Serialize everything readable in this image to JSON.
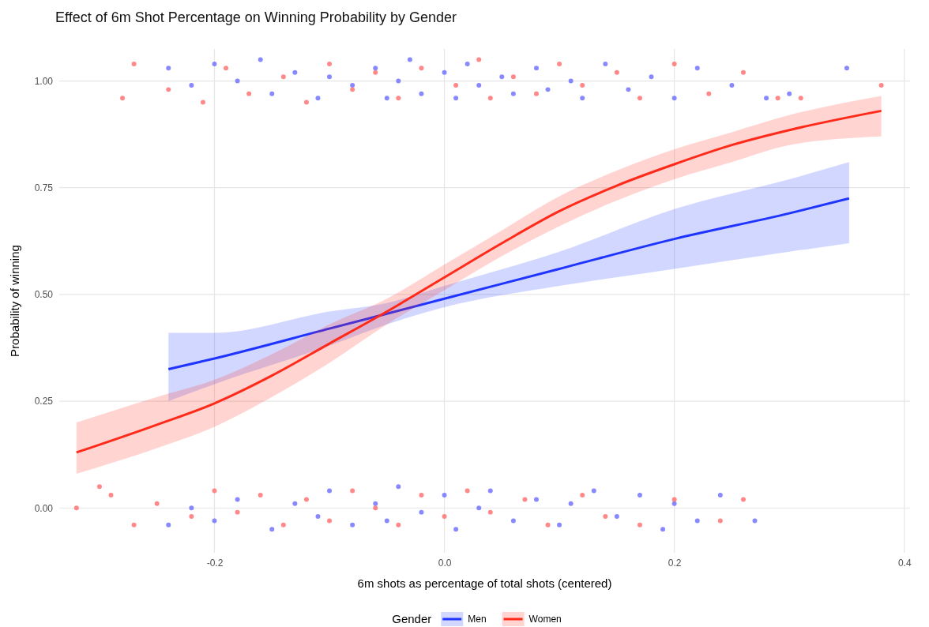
{
  "chart_data": {
    "type": "line",
    "title": "Effect of 6m Shot Percentage on Winning Probability by Gender",
    "xlabel": "6m shots as percentage of total shots (centered)",
    "ylabel": "Probability of winning",
    "legend_title": "Gender",
    "legend": "bottom",
    "grid": true,
    "xlim": [
      -0.335,
      0.405
    ],
    "ylim": [
      -0.105,
      1.075
    ],
    "xticks": [
      -0.2,
      {
        "value": 0,
        "label": "0.0"
      },
      0.2,
      0.4
    ],
    "yticks": [
      {
        "value": 0,
        "label": "0.00"
      },
      {
        "value": 0.25,
        "label": "0.25"
      },
      {
        "value": 0.5,
        "label": "0.50"
      },
      {
        "value": 0.75,
        "label": "0.75"
      },
      {
        "value": 1,
        "label": "1.00"
      }
    ],
    "series": [
      {
        "type": "scatter",
        "marker": "circle",
        "color": "#6a6aff",
        "x": [
          -0.24,
          -0.22,
          -0.2,
          -0.18,
          -0.16,
          -0.15,
          -0.13,
          -0.11,
          -0.1,
          -0.08,
          -0.06,
          -0.05,
          -0.04,
          -0.03,
          -0.02,
          0,
          0.01,
          0.02,
          0.03,
          0.05,
          0.06,
          0.08,
          0.09,
          0.11,
          0.12,
          0.14,
          0.16,
          0.18,
          0.2,
          0.22,
          0.25,
          0.28,
          0.3,
          0.35,
          -0.24,
          -0.22,
          -0.2,
          -0.18,
          -0.15,
          -0.13,
          -0.11,
          -0.1,
          -0.08,
          -0.06,
          -0.05,
          -0.04,
          -0.02,
          0,
          0.01,
          0.03,
          0.04,
          0.06,
          0.08,
          0.1,
          0.11,
          0.13,
          0.15,
          0.17,
          0.19,
          0.2,
          0.22,
          0.24,
          0.27
        ],
        "values": [
          1.03,
          0.99,
          1.04,
          1.0,
          1.05,
          0.97,
          1.02,
          0.96,
          1.01,
          0.99,
          1.03,
          0.96,
          1.0,
          1.05,
          0.97,
          1.02,
          0.96,
          1.04,
          0.99,
          1.01,
          0.97,
          1.03,
          0.98,
          1.0,
          0.96,
          1.04,
          0.98,
          1.01,
          0.96,
          1.03,
          0.99,
          0.96,
          0.97,
          1.03,
          -0.04,
          0.0,
          -0.03,
          0.02,
          -0.05,
          0.01,
          -0.02,
          0.04,
          -0.04,
          0.01,
          -0.03,
          0.05,
          -0.01,
          0.03,
          -0.05,
          0.0,
          0.04,
          -0.03,
          0.02,
          -0.04,
          0.01,
          0.04,
          -0.02,
          0.03,
          -0.05,
          0.01,
          -0.03,
          0.03,
          -0.03
        ]
      },
      {
        "type": "scatter",
        "marker": "circle",
        "color": "#ff6a6a",
        "x": [
          -0.28,
          -0.27,
          -0.24,
          -0.21,
          -0.19,
          -0.17,
          -0.14,
          -0.12,
          -0.1,
          -0.08,
          -0.06,
          -0.04,
          -0.02,
          0.01,
          0.03,
          0.04,
          0.06,
          0.08,
          0.1,
          0.12,
          0.15,
          0.17,
          0.2,
          0.23,
          0.26,
          0.29,
          0.31,
          0.38,
          -0.32,
          -0.3,
          -0.29,
          -0.27,
          -0.25,
          -0.22,
          -0.2,
          -0.18,
          -0.16,
          -0.14,
          -0.12,
          -0.1,
          -0.08,
          -0.06,
          -0.04,
          -0.02,
          0,
          0.02,
          0.04,
          0.07,
          0.09,
          0.12,
          0.14,
          0.17,
          0.2,
          0.24,
          0.26
        ],
        "values": [
          0.96,
          1.04,
          0.98,
          0.95,
          1.03,
          0.97,
          1.01,
          0.95,
          1.04,
          0.98,
          1.02,
          0.96,
          1.03,
          0.99,
          1.05,
          0.96,
          1.01,
          0.97,
          1.04,
          0.99,
          1.02,
          0.96,
          1.04,
          0.97,
          1.02,
          0.96,
          0.96,
          0.99,
          0.0,
          0.05,
          0.03,
          -0.04,
          0.01,
          -0.02,
          0.04,
          -0.01,
          0.03,
          -0.04,
          0.02,
          -0.03,
          0.04,
          0.0,
          -0.04,
          0.03,
          -0.02,
          0.04,
          -0.01,
          0.02,
          -0.04,
          0.03,
          -0.02,
          -0.04,
          0.02,
          -0.03,
          0.02
        ]
      },
      {
        "name": "Men",
        "color": "#1f35ff",
        "x": [
          -0.24,
          -0.2,
          -0.1,
          -0.05,
          0,
          0.1,
          0.2,
          0.3,
          0.352
        ],
        "values": [
          0.325,
          0.35,
          0.42,
          0.455,
          0.49,
          0.56,
          0.63,
          0.69,
          0.725
        ],
        "lower": [
          0.25,
          0.29,
          0.38,
          0.43,
          0.47,
          0.52,
          0.56,
          0.6,
          0.62
        ],
        "upper": [
          0.41,
          0.41,
          0.46,
          0.48,
          0.52,
          0.6,
          0.7,
          0.77,
          0.81
        ]
      },
      {
        "name": "Women",
        "color": "#ff2a1a",
        "x": [
          -0.32,
          -0.25,
          -0.2,
          -0.15,
          -0.1,
          -0.05,
          0,
          0.05,
          0.1,
          0.15,
          0.2,
          0.25,
          0.3,
          0.38
        ],
        "values": [
          0.13,
          0.195,
          0.245,
          0.31,
          0.385,
          0.46,
          0.54,
          0.62,
          0.695,
          0.755,
          0.805,
          0.85,
          0.885,
          0.93
        ],
        "lower": [
          0.08,
          0.14,
          0.19,
          0.26,
          0.34,
          0.43,
          0.51,
          0.59,
          0.66,
          0.72,
          0.77,
          0.81,
          0.85,
          0.87
        ],
        "upper": [
          0.2,
          0.26,
          0.3,
          0.36,
          0.43,
          0.49,
          0.57,
          0.65,
          0.73,
          0.79,
          0.84,
          0.88,
          0.92,
          0.965
        ]
      }
    ]
  }
}
